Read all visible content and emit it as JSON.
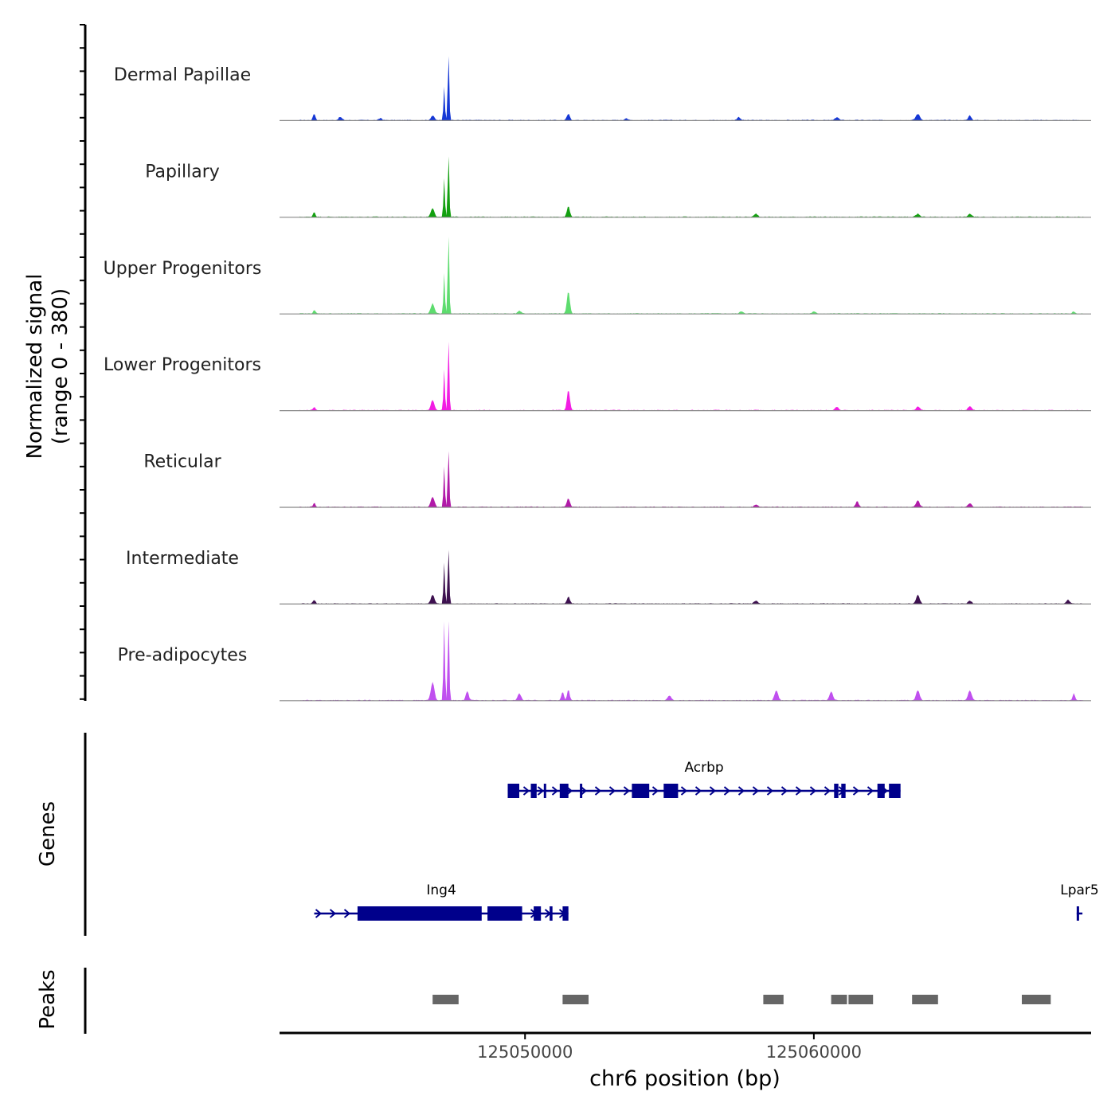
{
  "chart_data": {
    "type": "area",
    "title": "",
    "chromosome": "chr6",
    "xlim": [
      125041500,
      125069600
    ],
    "xlabel": "chr6 position (bp)",
    "x_ticks": [
      125050000,
      125060000
    ],
    "x_tick_labels": [
      "125050000",
      "125060000"
    ],
    "signal_label_line1": "Normalized signal",
    "signal_label_line2": "(range 0 - 380)",
    "ylim": [
      0,
      380
    ],
    "series": [
      {
        "name": "Dermal Papillae",
        "color": "#1537d6",
        "peaks": [
          [
            125042700,
            30,
            40
          ],
          [
            125043600,
            14,
            60
          ],
          [
            125045000,
            10,
            50
          ],
          [
            125046800,
            20,
            60
          ],
          [
            125047200,
            150,
            25
          ],
          [
            125047350,
            310,
            25
          ],
          [
            125051500,
            28,
            50
          ],
          [
            125053500,
            10,
            50
          ],
          [
            125057400,
            14,
            60
          ],
          [
            125060800,
            14,
            60
          ],
          [
            125063600,
            28,
            70
          ],
          [
            125065400,
            22,
            50
          ]
        ]
      },
      {
        "name": "Papillary",
        "color": "#13a010",
        "peaks": [
          [
            125042700,
            22,
            40
          ],
          [
            125046800,
            40,
            60
          ],
          [
            125047200,
            170,
            25
          ],
          [
            125047350,
            290,
            25
          ],
          [
            125051500,
            48,
            50
          ],
          [
            125058000,
            14,
            60
          ],
          [
            125063600,
            14,
            60
          ],
          [
            125065400,
            14,
            60
          ]
        ]
      },
      {
        "name": "Upper Progenitors",
        "color": "#5ddc6e",
        "peaks": [
          [
            125042700,
            16,
            40
          ],
          [
            125046800,
            45,
            60
          ],
          [
            125047200,
            180,
            25
          ],
          [
            125047350,
            370,
            25
          ],
          [
            125051500,
            100,
            50
          ],
          [
            125049800,
            12,
            60
          ],
          [
            125057500,
            10,
            60
          ],
          [
            125060000,
            8,
            60
          ],
          [
            125069000,
            10,
            40
          ]
        ]
      },
      {
        "name": "Lower Progenitors",
        "color": "#f21de3",
        "peaks": [
          [
            125042700,
            14,
            40
          ],
          [
            125046800,
            45,
            60
          ],
          [
            125047200,
            180,
            25
          ],
          [
            125047350,
            330,
            25
          ],
          [
            125051500,
            90,
            50
          ],
          [
            125060800,
            16,
            60
          ],
          [
            125063600,
            18,
            60
          ],
          [
            125065400,
            18,
            60
          ]
        ]
      },
      {
        "name": "Reticular",
        "color": "#b11aa8",
        "peaks": [
          [
            125042700,
            18,
            40
          ],
          [
            125046800,
            45,
            60
          ],
          [
            125047200,
            180,
            25
          ],
          [
            125047350,
            270,
            25
          ],
          [
            125051500,
            38,
            50
          ],
          [
            125058000,
            12,
            60
          ],
          [
            125061500,
            25,
            50
          ],
          [
            125063600,
            28,
            60
          ],
          [
            125065400,
            16,
            60
          ]
        ]
      },
      {
        "name": "Intermediate",
        "color": "#3e1150",
        "peaks": [
          [
            125042700,
            18,
            40
          ],
          [
            125046800,
            40,
            60
          ],
          [
            125047200,
            180,
            25
          ],
          [
            125047350,
            260,
            25
          ],
          [
            125051500,
            32,
            50
          ],
          [
            125058000,
            14,
            60
          ],
          [
            125063600,
            40,
            60
          ],
          [
            125065400,
            14,
            60
          ],
          [
            125068800,
            18,
            50
          ]
        ]
      },
      {
        "name": "Pre-adipocytes",
        "color": "#c050ef",
        "peaks": [
          [
            125047200,
            350,
            25
          ],
          [
            125047350,
            380,
            25
          ],
          [
            125046800,
            80,
            60
          ],
          [
            125048000,
            40,
            50
          ],
          [
            125051300,
            40,
            40
          ],
          [
            125051500,
            50,
            40
          ],
          [
            125049800,
            30,
            60
          ],
          [
            125055000,
            22,
            60
          ],
          [
            125058700,
            45,
            60
          ],
          [
            125060600,
            38,
            60
          ],
          [
            125063600,
            45,
            60
          ],
          [
            125065400,
            45,
            60
          ],
          [
            125069000,
            30,
            40
          ]
        ]
      }
    ],
    "genes_label": "Genes",
    "genes": [
      {
        "name": "Acrbp",
        "strand": "+",
        "start": 125049400,
        "end": 125063000,
        "row": 1,
        "exons": [
          [
            125049400,
            125049800
          ],
          [
            125050200,
            125050400
          ],
          [
            125050650,
            125050700
          ],
          [
            125051200,
            125051500
          ],
          [
            125051900,
            125051950
          ],
          [
            125053700,
            125054300
          ],
          [
            125054800,
            125055300
          ],
          [
            125060700,
            125060850
          ],
          [
            125060950,
            125061100
          ],
          [
            125062200,
            125062450
          ],
          [
            125062600,
            125063000
          ]
        ]
      },
      {
        "name": "Ing4",
        "strand": "+",
        "start": 125042700,
        "end": 125051500,
        "row": 2,
        "exons": [
          [
            125044200,
            125048500
          ],
          [
            125048700,
            125049900
          ],
          [
            125050300,
            125050550
          ],
          [
            125050850,
            125050950
          ],
          [
            125051300,
            125051500
          ]
        ]
      },
      {
        "name": "Lpar5",
        "strand": "+",
        "start": 125069100,
        "end": 125069300,
        "row": 2,
        "exons": [
          [
            125069100,
            125069150
          ]
        ]
      }
    ],
    "peaks_label": "Peaks",
    "peak_regions": [
      [
        125046800,
        125047700
      ],
      [
        125051300,
        125052200
      ],
      [
        125058250,
        125058950
      ],
      [
        125060600,
        125061150
      ],
      [
        125061200,
        125062050
      ],
      [
        125063400,
        125064300
      ],
      [
        125067200,
        125068200
      ]
    ]
  }
}
